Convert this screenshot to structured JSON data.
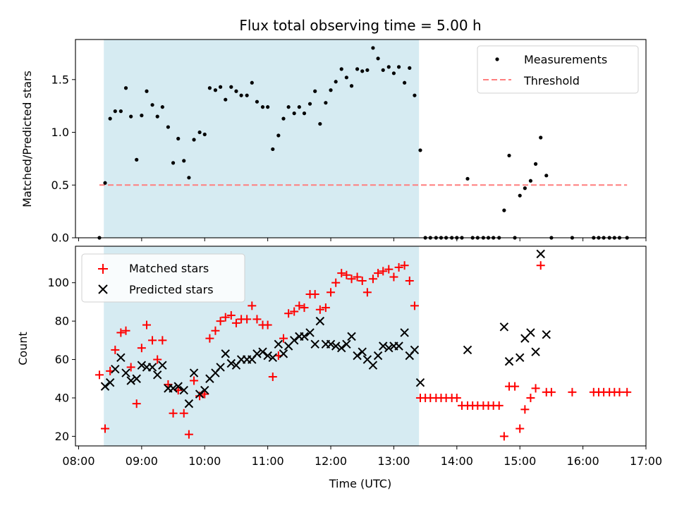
{
  "title": "Flux total observing time = 5.00 h",
  "colors": {
    "measurement": "#000000",
    "threshold": "#ff7f7f",
    "matched": "#ff0000",
    "predicted": "#000000",
    "span": "#add8e6"
  },
  "chart_data": [
    {
      "type": "scatter",
      "panel": "top",
      "title": "Flux total observing time = 5.00 h",
      "xlabel": "",
      "ylabel": "Matched/Predicted stars",
      "x_unit": "hours (UTC)",
      "xlim": [
        7.95,
        17.0
      ],
      "ylim": [
        0.0,
        1.88
      ],
      "yticks": [
        0.0,
        0.5,
        1.0,
        1.5
      ],
      "ytick_labels": [
        "0.0",
        "0.5",
        "1.0",
        "1.5"
      ],
      "shaded_span": [
        8.4,
        13.4
      ],
      "legend_position": "top-right",
      "legend": [
        "Measurements",
        "Threshold"
      ],
      "threshold": {
        "name": "Threshold",
        "value": 0.5,
        "x_range": [
          8.33,
          16.7
        ]
      },
      "series": [
        {
          "name": "Measurements",
          "marker": "dot",
          "points": [
            [
              8.33,
              0.0
            ],
            [
              8.42,
              0.52
            ],
            [
              8.5,
              1.13
            ],
            [
              8.58,
              1.2
            ],
            [
              8.67,
              1.2
            ],
            [
              8.75,
              1.42
            ],
            [
              8.83,
              1.15
            ],
            [
              8.92,
              0.74
            ],
            [
              9.0,
              1.16
            ],
            [
              9.08,
              1.39
            ],
            [
              9.17,
              1.26
            ],
            [
              9.25,
              1.15
            ],
            [
              9.33,
              1.24
            ],
            [
              9.42,
              1.05
            ],
            [
              9.5,
              0.71
            ],
            [
              9.58,
              0.94
            ],
            [
              9.67,
              0.73
            ],
            [
              9.75,
              0.57
            ],
            [
              9.83,
              0.93
            ],
            [
              9.92,
              1.0
            ],
            [
              10.0,
              0.98
            ],
            [
              10.08,
              1.42
            ],
            [
              10.17,
              1.4
            ],
            [
              10.25,
              1.43
            ],
            [
              10.33,
              1.31
            ],
            [
              10.42,
              1.43
            ],
            [
              10.5,
              1.39
            ],
            [
              10.58,
              1.35
            ],
            [
              10.67,
              1.35
            ],
            [
              10.75,
              1.47
            ],
            [
              10.83,
              1.29
            ],
            [
              10.92,
              1.24
            ],
            [
              11.0,
              1.24
            ],
            [
              11.08,
              0.84
            ],
            [
              11.17,
              0.97
            ],
            [
              11.25,
              1.13
            ],
            [
              11.33,
              1.24
            ],
            [
              11.42,
              1.18
            ],
            [
              11.5,
              1.24
            ],
            [
              11.58,
              1.18
            ],
            [
              11.67,
              1.27
            ],
            [
              11.75,
              1.39
            ],
            [
              11.83,
              1.08
            ],
            [
              11.92,
              1.28
            ],
            [
              12.0,
              1.4
            ],
            [
              12.08,
              1.48
            ],
            [
              12.17,
              1.6
            ],
            [
              12.25,
              1.52
            ],
            [
              12.33,
              1.44
            ],
            [
              12.42,
              1.6
            ],
            [
              12.5,
              1.58
            ],
            [
              12.58,
              1.59
            ],
            [
              12.67,
              1.8
            ],
            [
              12.75,
              1.7
            ],
            [
              12.83,
              1.59
            ],
            [
              12.92,
              1.62
            ],
            [
              13.0,
              1.56
            ],
            [
              13.08,
              1.62
            ],
            [
              13.17,
              1.47
            ],
            [
              13.25,
              1.61
            ],
            [
              13.33,
              1.35
            ],
            [
              13.42,
              0.83
            ],
            [
              13.5,
              0.0
            ],
            [
              13.58,
              0.0
            ],
            [
              13.67,
              0.0
            ],
            [
              13.75,
              0.0
            ],
            [
              13.83,
              0.0
            ],
            [
              13.92,
              0.0
            ],
            [
              14.0,
              0.0
            ],
            [
              14.08,
              0.0
            ],
            [
              14.17,
              0.56
            ],
            [
              14.25,
              0.0
            ],
            [
              14.33,
              0.0
            ],
            [
              14.42,
              0.0
            ],
            [
              14.5,
              0.0
            ],
            [
              14.58,
              0.0
            ],
            [
              14.67,
              0.0
            ],
            [
              14.75,
              0.26
            ],
            [
              14.83,
              0.78
            ],
            [
              14.92,
              0.0
            ],
            [
              15.0,
              0.4
            ],
            [
              15.08,
              0.47
            ],
            [
              15.17,
              0.54
            ],
            [
              15.25,
              0.7
            ],
            [
              15.33,
              0.95
            ],
            [
              15.42,
              0.59
            ],
            [
              15.5,
              0.0
            ],
            [
              15.83,
              0.0
            ],
            [
              16.17,
              0.0
            ],
            [
              16.25,
              0.0
            ],
            [
              16.33,
              0.0
            ],
            [
              16.42,
              0.0
            ],
            [
              16.5,
              0.0
            ],
            [
              16.58,
              0.0
            ],
            [
              16.7,
              0.0
            ]
          ]
        }
      ]
    },
    {
      "type": "scatter",
      "panel": "bottom",
      "title": "",
      "xlabel": "Time (UTC)",
      "ylabel": "Count",
      "x_unit": "hours (UTC)",
      "xlim": [
        7.95,
        17.0
      ],
      "ylim": [
        15,
        119
      ],
      "xticks": [
        8,
        9,
        10,
        11,
        12,
        13,
        14,
        15,
        16,
        17
      ],
      "xtick_labels": [
        "08:00",
        "09:00",
        "10:00",
        "11:00",
        "12:00",
        "13:00",
        "14:00",
        "15:00",
        "16:00",
        "17:00"
      ],
      "yticks": [
        20,
        40,
        60,
        80,
        100
      ],
      "ytick_labels": [
        "20",
        "40",
        "60",
        "80",
        "100"
      ],
      "shaded_span": [
        8.4,
        13.4
      ],
      "legend_position": "top-left",
      "legend": [
        "Matched stars",
        "Predicted stars"
      ],
      "series": [
        {
          "name": "Matched stars",
          "marker": "plus",
          "points": [
            [
              8.33,
              52
            ],
            [
              8.42,
              24
            ],
            [
              8.5,
              54
            ],
            [
              8.58,
              65
            ],
            [
              8.67,
              74
            ],
            [
              8.75,
              75
            ],
            [
              8.83,
              56
            ],
            [
              8.92,
              37
            ],
            [
              9.0,
              66
            ],
            [
              9.08,
              78
            ],
            [
              9.17,
              70
            ],
            [
              9.25,
              60
            ],
            [
              9.33,
              70
            ],
            [
              9.42,
              47
            ],
            [
              9.5,
              32
            ],
            [
              9.58,
              44
            ],
            [
              9.67,
              32
            ],
            [
              9.75,
              21
            ],
            [
              9.83,
              49
            ],
            [
              9.92,
              41
            ],
            [
              10.0,
              42
            ],
            [
              10.08,
              71
            ],
            [
              10.17,
              75
            ],
            [
              10.25,
              80
            ],
            [
              10.33,
              82
            ],
            [
              10.42,
              83
            ],
            [
              10.5,
              79
            ],
            [
              10.58,
              81
            ],
            [
              10.67,
              81
            ],
            [
              10.75,
              88
            ],
            [
              10.83,
              81
            ],
            [
              10.92,
              78
            ],
            [
              11.0,
              78
            ],
            [
              11.08,
              51
            ],
            [
              11.17,
              62
            ],
            [
              11.25,
              71
            ],
            [
              11.33,
              84
            ],
            [
              11.42,
              85
            ],
            [
              11.5,
              88
            ],
            [
              11.58,
              87
            ],
            [
              11.67,
              94
            ],
            [
              11.75,
              94
            ],
            [
              11.83,
              86
            ],
            [
              11.92,
              87
            ],
            [
              12.0,
              95
            ],
            [
              12.08,
              100
            ],
            [
              12.17,
              105
            ],
            [
              12.25,
              104
            ],
            [
              12.33,
              102
            ],
            [
              12.42,
              103
            ],
            [
              12.5,
              101
            ],
            [
              12.58,
              95
            ],
            [
              12.67,
              102
            ],
            [
              12.75,
              105
            ],
            [
              12.83,
              106
            ],
            [
              12.92,
              107
            ],
            [
              13.0,
              103
            ],
            [
              13.08,
              108
            ],
            [
              13.17,
              109
            ],
            [
              13.25,
              101
            ],
            [
              13.33,
              88
            ],
            [
              13.42,
              40
            ],
            [
              13.5,
              40
            ],
            [
              13.58,
              40
            ],
            [
              13.67,
              40
            ],
            [
              13.75,
              40
            ],
            [
              13.83,
              40
            ],
            [
              13.92,
              40
            ],
            [
              14.0,
              40
            ],
            [
              14.08,
              36
            ],
            [
              14.17,
              36
            ],
            [
              14.25,
              36
            ],
            [
              14.33,
              36
            ],
            [
              14.42,
              36
            ],
            [
              14.5,
              36
            ],
            [
              14.58,
              36
            ],
            [
              14.67,
              36
            ],
            [
              14.75,
              20
            ],
            [
              14.83,
              46
            ],
            [
              14.92,
              46
            ],
            [
              15.0,
              24
            ],
            [
              15.08,
              34
            ],
            [
              15.17,
              40
            ],
            [
              15.25,
              45
            ],
            [
              15.33,
              109
            ],
            [
              15.42,
              43
            ],
            [
              15.5,
              43
            ],
            [
              15.83,
              43
            ],
            [
              16.17,
              43
            ],
            [
              16.25,
              43
            ],
            [
              16.33,
              43
            ],
            [
              16.42,
              43
            ],
            [
              16.5,
              43
            ],
            [
              16.58,
              43
            ],
            [
              16.7,
              43
            ]
          ]
        },
        {
          "name": "Predicted stars",
          "marker": "x",
          "points": [
            [
              8.42,
              46
            ],
            [
              8.5,
              48
            ],
            [
              8.58,
              55
            ],
            [
              8.67,
              61
            ],
            [
              8.75,
              53
            ],
            [
              8.83,
              49
            ],
            [
              8.92,
              50
            ],
            [
              9.0,
              57
            ],
            [
              9.08,
              56
            ],
            [
              9.17,
              56
            ],
            [
              9.25,
              52
            ],
            [
              9.33,
              57
            ],
            [
              9.42,
              45
            ],
            [
              9.5,
              45
            ],
            [
              9.58,
              46
            ],
            [
              9.67,
              44
            ],
            [
              9.75,
              37
            ],
            [
              9.83,
              53
            ],
            [
              9.92,
              42
            ],
            [
              10.0,
              44
            ],
            [
              10.08,
              50
            ],
            [
              10.17,
              53
            ],
            [
              10.25,
              56
            ],
            [
              10.33,
              63
            ],
            [
              10.42,
              58
            ],
            [
              10.5,
              57
            ],
            [
              10.58,
              60
            ],
            [
              10.67,
              60
            ],
            [
              10.75,
              60
            ],
            [
              10.83,
              63
            ],
            [
              10.92,
              64
            ],
            [
              11.0,
              62
            ],
            [
              11.08,
              61
            ],
            [
              11.17,
              68
            ],
            [
              11.25,
              63
            ],
            [
              11.33,
              67
            ],
            [
              11.42,
              70
            ],
            [
              11.5,
              72
            ],
            [
              11.58,
              72
            ],
            [
              11.67,
              74
            ],
            [
              11.75,
              68
            ],
            [
              11.83,
              80
            ],
            [
              11.92,
              68
            ],
            [
              12.0,
              68
            ],
            [
              12.08,
              67
            ],
            [
              12.17,
              66
            ],
            [
              12.25,
              68
            ],
            [
              12.33,
              72
            ],
            [
              12.42,
              62
            ],
            [
              12.5,
              64
            ],
            [
              12.58,
              60
            ],
            [
              12.67,
              57
            ],
            [
              12.75,
              62
            ],
            [
              12.83,
              67
            ],
            [
              12.92,
              66
            ],
            [
              13.0,
              67
            ],
            [
              13.08,
              67
            ],
            [
              13.17,
              74
            ],
            [
              13.25,
              62
            ],
            [
              13.33,
              65
            ],
            [
              13.42,
              48
            ],
            [
              14.17,
              65
            ],
            [
              14.75,
              77
            ],
            [
              14.83,
              59
            ],
            [
              15.0,
              61
            ],
            [
              15.08,
              71
            ],
            [
              15.17,
              74
            ],
            [
              15.25,
              64
            ],
            [
              15.33,
              115
            ],
            [
              15.42,
              73
            ]
          ]
        }
      ]
    }
  ]
}
